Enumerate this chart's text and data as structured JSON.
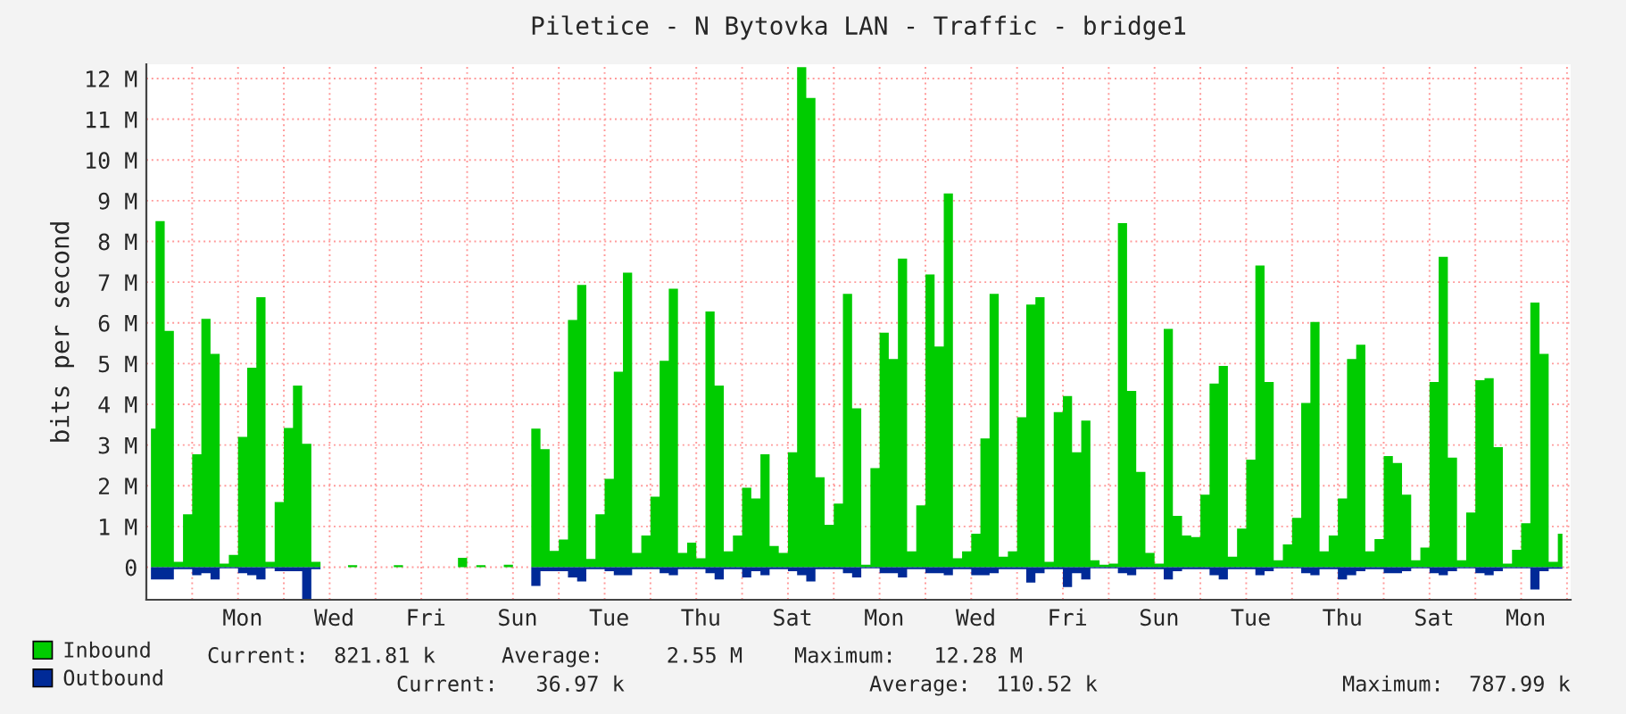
{
  "chart_data": {
    "type": "area",
    "title": "Piletice - N Bytovka LAN - Traffic - bridge1",
    "ylabel": "bits per second",
    "categories": [
      null,
      null,
      null,
      null,
      null,
      null,
      null,
      null,
      null,
      null,
      "Mon",
      null,
      null,
      null,
      null,
      null,
      null,
      null,
      null,
      null,
      "Wed",
      null,
      null,
      null,
      null,
      null,
      null,
      null,
      null,
      null,
      "Fri",
      null,
      null,
      null,
      null,
      null,
      null,
      null,
      null,
      null,
      "Sun",
      null,
      null,
      null,
      null,
      null,
      null,
      null,
      null,
      null,
      "Tue",
      null,
      null,
      null,
      null,
      null,
      null,
      null,
      null,
      null,
      "Thu",
      null,
      null,
      null,
      null,
      null,
      null,
      null,
      null,
      null,
      "Sat",
      null,
      null,
      null,
      null,
      null,
      null,
      null,
      null,
      null,
      "Mon",
      null,
      null,
      null,
      null,
      null,
      null,
      null,
      null,
      null,
      "Wed",
      null,
      null,
      null,
      null,
      null,
      null,
      null,
      null,
      null,
      "Fri",
      null,
      null,
      null,
      null,
      null,
      null,
      null,
      null,
      null,
      "Sun",
      null,
      null,
      null,
      null,
      null,
      null,
      null,
      null,
      null,
      "Tue",
      null,
      null,
      null,
      null,
      null,
      null,
      null,
      null,
      null,
      "Thu",
      null,
      null,
      null,
      null,
      null,
      null,
      null,
      null,
      null,
      "Sat",
      null,
      null,
      null,
      null,
      null,
      null,
      null,
      null,
      null,
      "Mon",
      null,
      null,
      null,
      null
    ],
    "ylim": [
      -0.8,
      12.35
    ],
    "yticks": [
      0,
      {
        "value": 1,
        "label": "1 M"
      },
      {
        "value": 2,
        "label": "2 M"
      },
      {
        "value": 3,
        "label": "3 M"
      },
      {
        "value": 4,
        "label": "4 M"
      },
      {
        "value": 5,
        "label": "5 M"
      },
      {
        "value": 6,
        "label": "6 M"
      },
      {
        "value": 7,
        "label": "7 M"
      },
      {
        "value": 8,
        "label": "8 M"
      },
      {
        "value": 9,
        "label": "9 M"
      },
      {
        "value": 10,
        "label": "10 M"
      },
      {
        "value": 11,
        "label": "11 M"
      },
      {
        "value": 12,
        "label": "12 M"
      }
    ],
    "grid": true,
    "legend": "bottom left",
    "series": [
      {
        "name": "Inbound",
        "color": "#00cc00",
        "values": [
          3.4,
          8.5,
          5.8,
          0.13,
          1.3,
          2.77,
          6.1,
          5.24,
          0.09,
          0.3,
          3.2,
          4.9,
          6.63,
          0.13,
          1.6,
          3.42,
          4.46,
          3.03,
          0.13,
          0,
          0,
          0,
          0.05,
          0,
          0,
          0,
          0,
          0.05,
          0,
          0,
          0,
          0,
          0,
          0,
          0.23,
          0,
          0.05,
          0,
          0,
          0.06,
          0,
          0,
          3.4,
          2.9,
          0.4,
          0.68,
          6.07,
          6.93,
          0.2,
          1.3,
          2.17,
          4.8,
          7.23,
          0.35,
          0.78,
          1.73,
          5.07,
          6.84,
          0.35,
          0.6,
          0.22,
          6.28,
          4.46,
          0.39,
          0.78,
          1.95,
          1.69,
          2.77,
          0.52,
          0.35,
          2.82,
          12.28,
          11.52,
          2.21,
          1.04,
          1.56,
          6.71,
          3.9,
          0.06,
          2.43,
          5.76,
          5.11,
          7.58,
          0.39,
          1.52,
          7.19,
          5.42,
          9.18,
          0.22,
          0.39,
          0.82,
          3.16,
          6.71,
          0.26,
          0.39,
          3.68,
          6.45,
          6.63,
          0.13,
          3.81,
          4.2,
          2.82,
          3.6,
          0.17,
          0.06,
          0.09,
          8.45,
          4.33,
          2.34,
          0.35,
          0.09,
          5.85,
          1.26,
          0.78,
          0.74,
          1.78,
          4.51,
          4.94,
          0.26,
          0.95,
          2.64,
          7.41,
          4.55,
          0.17,
          0.56,
          1.21,
          4.03,
          6.02,
          0.39,
          0.78,
          1.69,
          5.11,
          5.46,
          0.39,
          0.69,
          2.73,
          2.56,
          1.78,
          0.17,
          0.48,
          4.55,
          7.62,
          2.69,
          0.17,
          1.34,
          4.59,
          4.64,
          2.95,
          0.09,
          0.43,
          1.08,
          6.5,
          5.24,
          0.13,
          0.82
        ]
      },
      {
        "name": "Outbound",
        "color": "#002a97",
        "values": [
          -0.3,
          -0.3,
          -0.3,
          -0.05,
          -0.05,
          -0.2,
          -0.15,
          -0.3,
          -0.03,
          -0.03,
          -0.15,
          -0.2,
          -0.3,
          -0.03,
          -0.1,
          -0.1,
          -0.1,
          -0.79,
          -0.05,
          0,
          0,
          0,
          0,
          0,
          0,
          0,
          0,
          0,
          0,
          0,
          0,
          0,
          0,
          0,
          0,
          0,
          0,
          0,
          0,
          0,
          0,
          0,
          -0.46,
          -0.1,
          -0.1,
          -0.1,
          -0.25,
          -0.35,
          -0.05,
          -0.05,
          -0.1,
          -0.2,
          -0.2,
          -0.05,
          -0.05,
          -0.05,
          -0.15,
          -0.2,
          -0.05,
          -0.05,
          -0.05,
          -0.15,
          -0.3,
          -0.05,
          -0.05,
          -0.25,
          -0.1,
          -0.2,
          -0.05,
          -0.05,
          -0.1,
          -0.2,
          -0.35,
          -0.05,
          -0.05,
          -0.05,
          -0.15,
          -0.25,
          -0.03,
          -0.03,
          -0.15,
          -0.15,
          -0.25,
          -0.05,
          -0.05,
          -0.15,
          -0.15,
          -0.2,
          -0.05,
          -0.05,
          -0.2,
          -0.2,
          -0.15,
          -0.05,
          -0.05,
          -0.05,
          -0.38,
          -0.15,
          -0.05,
          -0.05,
          -0.49,
          -0.15,
          -0.3,
          -0.03,
          -0.03,
          -0.03,
          -0.15,
          -0.2,
          -0.05,
          -0.05,
          -0.05,
          -0.3,
          -0.1,
          -0.05,
          -0.05,
          -0.05,
          -0.2,
          -0.3,
          -0.05,
          -0.05,
          -0.05,
          -0.2,
          -0.1,
          -0.03,
          -0.03,
          -0.03,
          -0.15,
          -0.2,
          -0.05,
          -0.05,
          -0.3,
          -0.2,
          -0.1,
          -0.05,
          -0.05,
          -0.15,
          -0.15,
          -0.1,
          -0.03,
          -0.03,
          -0.15,
          -0.2,
          -0.1,
          -0.03,
          -0.03,
          -0.15,
          -0.2,
          -0.1,
          -0.03,
          -0.03,
          -0.03,
          -0.55,
          -0.1,
          -0.04,
          -0.04
        ]
      }
    ],
    "annotations": [
      "Current:  821.81 k",
      "Average:     2.55 M",
      "Maximum:   12.28 M",
      "Current:   36.97 k",
      "Average:  110.52 k",
      "Maximum:  787.99 k"
    ]
  }
}
